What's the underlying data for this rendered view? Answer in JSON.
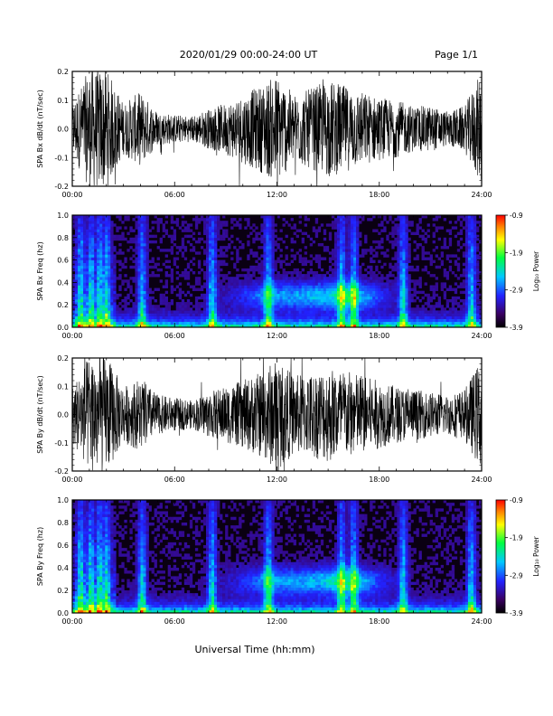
{
  "header": {
    "title": "2020/01/29  00:00-24:00 UT",
    "page_label": "Page 1/1"
  },
  "xlabel": "Universal Time (hh:mm)",
  "chart_data": [
    {
      "type": "line",
      "ylabel": "SPA Bx dB/dt (nT/sec)",
      "xlim": [
        0,
        24
      ],
      "ylim": [
        -0.2,
        0.2
      ],
      "x_ticks": [
        "00:00",
        "06:00",
        "12:00",
        "18:00",
        "24:00"
      ],
      "y_ticks": [
        "-0.2",
        "-0.1",
        "0.0",
        "0.1",
        "0.2"
      ],
      "envelope_hours": [
        0,
        1,
        2,
        3,
        4,
        5,
        6,
        7,
        8,
        9,
        10,
        11,
        12,
        13,
        14,
        15,
        16,
        17,
        18,
        19,
        20,
        21,
        22,
        23,
        24
      ],
      "envelope_amplitude": [
        0.09,
        0.21,
        0.21,
        0.09,
        0.13,
        0.06,
        0.05,
        0.045,
        0.07,
        0.09,
        0.12,
        0.15,
        0.19,
        0.12,
        0.14,
        0.17,
        0.15,
        0.13,
        0.11,
        0.1,
        0.08,
        0.08,
        0.06,
        0.08,
        0.2
      ]
    },
    {
      "type": "heatmap",
      "ylabel": "SPA Bx Freq (hz)",
      "xlim": [
        0,
        24
      ],
      "ylim": [
        0.0,
        1.0
      ],
      "x_ticks": [
        "00:00",
        "06:00",
        "12:00",
        "18:00",
        "24:00"
      ],
      "y_ticks": [
        "0.0",
        "0.2",
        "0.4",
        "0.6",
        "0.8",
        "1.0"
      ],
      "colorbar": {
        "label": "Log₁₀ Power",
        "ticks": [
          "-0.9",
          "-1.9",
          "-2.9",
          "-3.9"
        ],
        "min": -3.9,
        "max": -0.9
      }
    },
    {
      "type": "line",
      "ylabel": "SPA By dB/dt (nT/sec)",
      "xlim": [
        0,
        24
      ],
      "ylim": [
        -0.2,
        0.2
      ],
      "x_ticks": [
        "00:00",
        "06:00",
        "12:00",
        "18:00",
        "24:00"
      ],
      "y_ticks": [
        "-0.2",
        "-0.1",
        "0.0",
        "0.1",
        "0.2"
      ],
      "envelope_hours": [
        0,
        1,
        2,
        3,
        4,
        5,
        6,
        7,
        8,
        9,
        10,
        11,
        12,
        13,
        14,
        15,
        16,
        17,
        18,
        19,
        20,
        21,
        22,
        23,
        24
      ],
      "envelope_amplitude": [
        0.1,
        0.21,
        0.21,
        0.1,
        0.13,
        0.07,
        0.06,
        0.05,
        0.08,
        0.1,
        0.12,
        0.15,
        0.2,
        0.14,
        0.15,
        0.17,
        0.16,
        0.14,
        0.12,
        0.1,
        0.09,
        0.08,
        0.07,
        0.09,
        0.2
      ]
    },
    {
      "type": "heatmap",
      "ylabel": "SPA By Freq (hz)",
      "xlim": [
        0,
        24
      ],
      "ylim": [
        0.0,
        1.0
      ],
      "x_ticks": [
        "00:00",
        "06:00",
        "12:00",
        "18:00",
        "24:00"
      ],
      "y_ticks": [
        "0.0",
        "0.2",
        "0.4",
        "0.6",
        "0.8",
        "1.0"
      ],
      "colorbar": {
        "label": "Log₁₀ Power",
        "ticks": [
          "-0.9",
          "-1.9",
          "-2.9",
          "-3.9"
        ],
        "min": -3.9,
        "max": -0.9
      }
    }
  ]
}
